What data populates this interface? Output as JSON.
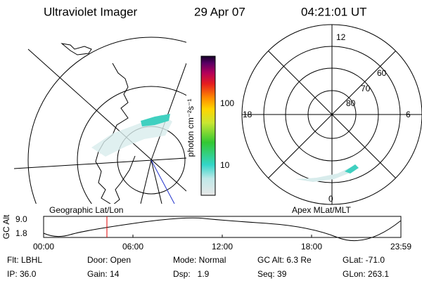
{
  "header": {
    "instrument": "Ultraviolet Imager",
    "date": "29 Apr 07",
    "time": "04:21:01 UT"
  },
  "colorbar": {
    "label": "photon cm⁻²s⁻¹",
    "ticks": [
      "100",
      "10"
    ]
  },
  "left_panel": {
    "title": "Geographic Lat/Lon"
  },
  "right_panel": {
    "title": "Apex MLat/MLT",
    "mlt_labels": [
      "12",
      "18",
      "6",
      "0"
    ],
    "mlat_labels": [
      "60",
      "70",
      "80"
    ]
  },
  "altitude_panel": {
    "label": "GC Alt",
    "yticks": [
      "9.0",
      "1.8"
    ],
    "xticks": [
      "00:00",
      "06:00",
      "12:00",
      "18:00",
      "23:59"
    ]
  },
  "footer": {
    "rows": [
      [
        "Flt: LBHL",
        "Door: Open",
        "Mode: Normal",
        "GC Alt: 6.3 Re",
        "GLat: -71.0"
      ],
      [
        "IP: 36.0",
        "Gain: 14",
        "Dsp:   1.9",
        "Seq: 39",
        "GLon: 263.1"
      ]
    ]
  }
}
